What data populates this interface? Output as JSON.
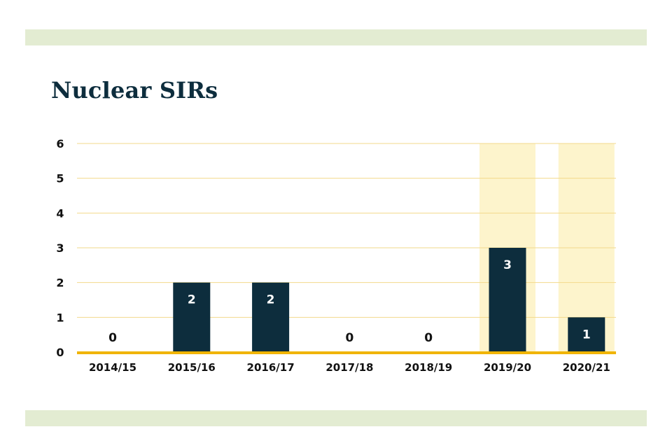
{
  "colors": {
    "band": "#e3ecd2",
    "bar": "#0d2d3d",
    "title": "#0d2d3d",
    "gridline": "#f2d98b",
    "baseline": "#f0b400",
    "highlight": "#fdf4cc",
    "label_outside": "#111111",
    "label_inside": "#ffffff"
  },
  "chart_data": {
    "type": "bar",
    "title": "Nuclear SIRs",
    "categories": [
      "2014/15",
      "2015/16",
      "2016/17",
      "2017/18",
      "2018/19",
      "2019/20",
      "2020/21"
    ],
    "values": [
      0,
      2,
      2,
      0,
      0,
      3,
      1
    ],
    "value_labels": [
      "0",
      "2",
      "2",
      "0",
      "0",
      "3",
      "1"
    ],
    "highlighted_categories": [
      "2019/20",
      "2020/21"
    ],
    "yticks": [
      "0",
      "1",
      "2",
      "3",
      "4",
      "5",
      "6"
    ],
    "ylim": [
      0,
      6
    ],
    "grid": true,
    "xlabel": "",
    "ylabel": ""
  }
}
